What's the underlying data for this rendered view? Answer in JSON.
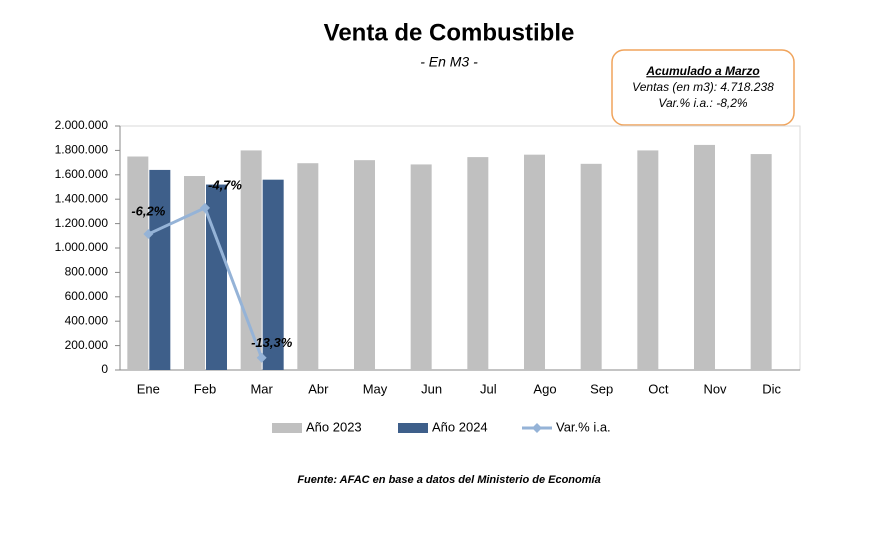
{
  "chart_data": {
    "type": "bar",
    "title": "Venta de Combustible",
    "subtitle": "- En M3 -",
    "categories": [
      "Ene",
      "Feb",
      "Mar",
      "Abr",
      "May",
      "Jun",
      "Jul",
      "Ago",
      "Sep",
      "Oct",
      "Nov",
      "Dic"
    ],
    "series": [
      {
        "name": "Año 2023",
        "type": "bar",
        "color": "#c0c0c0",
        "values": [
          1750000,
          1590000,
          1800000,
          1695000,
          1720000,
          1685000,
          1745000,
          1765000,
          1690000,
          1800000,
          1845000,
          1770000
        ]
      },
      {
        "name": "Año 2024",
        "type": "bar",
        "color": "#3e5f8a",
        "values": [
          1640000,
          1520000,
          1560000,
          null,
          null,
          null,
          null,
          null,
          null,
          null,
          null,
          null
        ]
      },
      {
        "name": "Var.% i.a.",
        "type": "line",
        "axis": "y2",
        "color": "#95b3d7",
        "values": [
          -6.2,
          -4.7,
          -13.3,
          null,
          null,
          null,
          null,
          null,
          null,
          null,
          null,
          null
        ],
        "value_labels": [
          "-6,2%",
          "-4,7%",
          "-13,3%",
          null,
          null,
          null,
          null,
          null,
          null,
          null,
          null,
          null
        ]
      }
    ],
    "ylim": [
      0,
      2000000
    ],
    "yticks": [
      0,
      {
        "value": 200000,
        "label": "200.000"
      },
      {
        "value": 400000,
        "label": "400.000"
      },
      {
        "value": 600000,
        "label": "600.000"
      },
      {
        "value": 800000,
        "label": "800.000"
      },
      {
        "value": 1000000,
        "label": "1.000.000"
      },
      {
        "value": 1200000,
        "label": "1.200.000"
      },
      {
        "value": 1400000,
        "label": "1.400.000"
      },
      {
        "value": 1600000,
        "label": "1.600.000"
      },
      {
        "value": 1800000,
        "label": "1.800.000"
      },
      {
        "value": 2000000,
        "label": "2.000.000"
      }
    ],
    "y2lim": [
      -14,
      0
    ],
    "legend": "bottom",
    "annotation": {
      "title": "Acumulado a Marzo",
      "lines": [
        "Ventas (en m3):  4.718.238",
        "Var.% i.a.: -8,2%"
      ]
    },
    "source": "Fuente: AFAC en base a datos del Ministerio de Economía"
  }
}
